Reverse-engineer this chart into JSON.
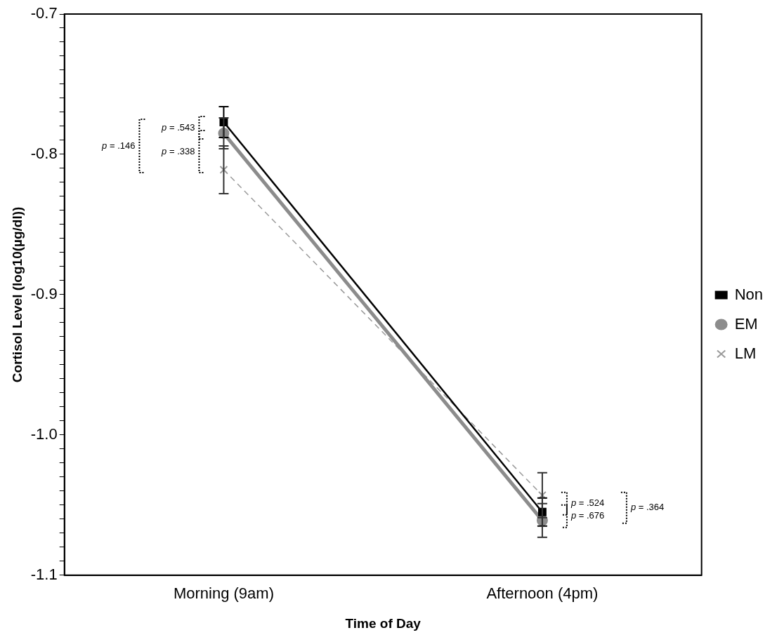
{
  "chart_data": {
    "type": "line",
    "xlabel": "Time of Day",
    "ylabel": "Cortisol Level (log10(µg/dl))",
    "categories": [
      "Morning (9am)",
      "Afternoon (4pm)"
    ],
    "series": [
      {
        "name": "Non",
        "color": "#000000",
        "values": [
          -0.777,
          -1.055
        ],
        "errors": [
          0.011,
          0.01
        ],
        "marker": "square",
        "line_style": "solid"
      },
      {
        "name": "EM",
        "color": "#8c8c8c",
        "values": [
          -0.785,
          -1.061
        ],
        "errors": [
          0.011,
          0.012
        ],
        "marker": "circle",
        "line_style": "solid"
      },
      {
        "name": "LM",
        "color": "#9a9a9a",
        "values": [
          -0.811,
          -1.043
        ],
        "errors": [
          0.017,
          0.016
        ],
        "marker": "cross",
        "line_style": "dashed"
      }
    ],
    "ylim": [
      -1.1,
      -0.7
    ],
    "yticks": [
      {
        "value": -1.1,
        "label": "-1.1"
      },
      {
        "value": -1.09,
        "label": null
      },
      {
        "value": -1.08,
        "label": null
      },
      {
        "value": -1.07,
        "label": null
      },
      {
        "value": -1.06,
        "label": null
      },
      {
        "value": -1.05,
        "label": null
      },
      {
        "value": -1.04,
        "label": null
      },
      {
        "value": -1.03,
        "label": null
      },
      {
        "value": -1.02,
        "label": null
      },
      {
        "value": -1.01,
        "label": null
      },
      {
        "value": -1.0,
        "label": "-1.0"
      },
      {
        "value": -0.99,
        "label": null
      },
      {
        "value": -0.98,
        "label": null
      },
      {
        "value": -0.97,
        "label": null
      },
      {
        "value": -0.96,
        "label": null
      },
      {
        "value": -0.95,
        "label": null
      },
      {
        "value": -0.94,
        "label": null
      },
      {
        "value": -0.93,
        "label": null
      },
      {
        "value": -0.92,
        "label": null
      },
      {
        "value": -0.91,
        "label": null
      },
      {
        "value": -0.9,
        "label": "-0.9"
      },
      {
        "value": -0.89,
        "label": null
      },
      {
        "value": -0.88,
        "label": null
      },
      {
        "value": -0.87,
        "label": null
      },
      {
        "value": -0.86,
        "label": null
      },
      {
        "value": -0.85,
        "label": null
      },
      {
        "value": -0.84,
        "label": null
      },
      {
        "value": -0.83,
        "label": null
      },
      {
        "value": -0.82,
        "label": null
      },
      {
        "value": -0.81,
        "label": null
      },
      {
        "value": -0.8,
        "label": "-0.8"
      },
      {
        "value": -0.79,
        "label": null
      },
      {
        "value": -0.78,
        "label": null
      },
      {
        "value": -0.77,
        "label": null
      },
      {
        "value": -0.76,
        "label": null
      },
      {
        "value": -0.75,
        "label": null
      },
      {
        "value": -0.74,
        "label": null
      },
      {
        "value": -0.73,
        "label": null
      },
      {
        "value": -0.72,
        "label": null
      },
      {
        "value": -0.71,
        "label": null
      },
      {
        "value": -0.7,
        "label": "-0.7"
      }
    ],
    "grid": false,
    "legend": "right",
    "annotations": [
      "p = .543",
      "p = .338",
      "p = .146",
      "p = .524",
      "p = .676",
      "p = .364"
    ]
  }
}
